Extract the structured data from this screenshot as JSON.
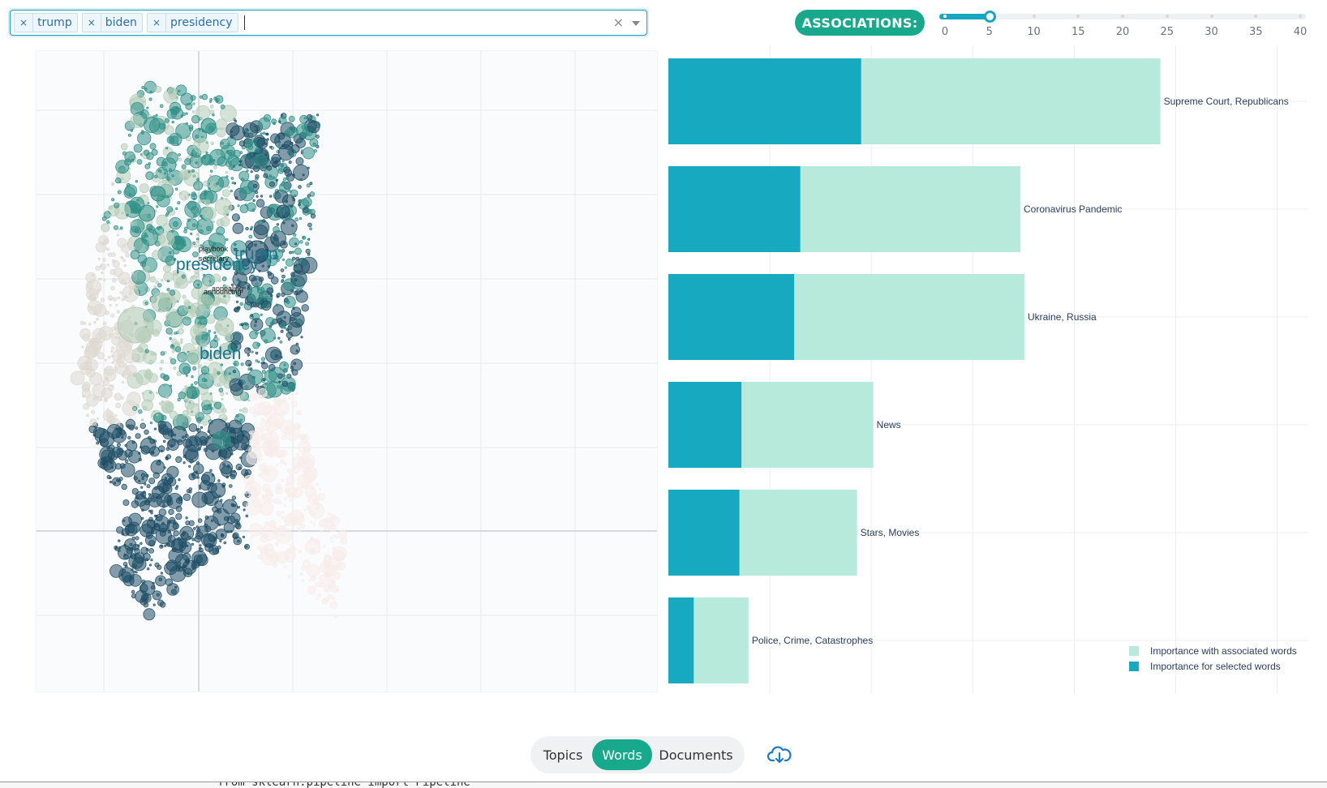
{
  "search": {
    "chips": [
      {
        "label": "trump"
      },
      {
        "label": "biden"
      },
      {
        "label": "presidency"
      }
    ],
    "chip_remove_glyph": "×",
    "clear_glyph": "×"
  },
  "associations": {
    "label": "ASSOCIATIONS:",
    "slider": {
      "min": 0,
      "max": 40,
      "value": 5,
      "ticks": [
        "0",
        "5",
        "10",
        "15",
        "20",
        "25",
        "30",
        "35",
        "40"
      ]
    }
  },
  "scatter": {
    "word_labels": [
      {
        "text": "presidency",
        "emphasis": "large"
      },
      {
        "text": "trump",
        "emphasis": "large"
      },
      {
        "text": "biden",
        "emphasis": "large"
      },
      {
        "text": "playbook",
        "emphasis": "small"
      },
      {
        "text": "secretary",
        "emphasis": "small"
      },
      {
        "text": "appealing",
        "emphasis": "small"
      },
      {
        "text": "announcing",
        "emphasis": "small"
      }
    ],
    "colors": {
      "dark": "#1f4e66",
      "teal": "#2f8f86",
      "sage": "#b6cdb8",
      "pale": "#ddd8cf",
      "pink": "#f7ecea"
    }
  },
  "chart_data": {
    "type": "bar",
    "orientation": "horizontal",
    "categories": [
      "Supreme Court, Republicans",
      "Coronavirus Pandemic",
      "Ukraine, Russia",
      "News",
      "Stars, Movies",
      "Police, Crime, Catastrophes"
    ],
    "series": [
      {
        "name": "Importance for selected words",
        "values": [
          19,
          13,
          12.4,
          7.2,
          7.0,
          2.5
        ]
      },
      {
        "name": "Importance with associated words",
        "values": [
          48.5,
          34.7,
          35.1,
          20.2,
          18.6,
          7.9
        ]
      }
    ],
    "xlim": [
      0,
      63
    ],
    "grid": true,
    "legend": "bottom-right",
    "colors": {
      "selected": "#16a9c0",
      "associated": "#b8eadb"
    }
  },
  "nav": {
    "tabs": [
      {
        "label": "Topics"
      },
      {
        "label": "Words",
        "active": true
      },
      {
        "label": "Documents"
      }
    ],
    "download_icon": "cloud-download-icon"
  },
  "background_code": "from sklearn.pipeline import Pipeline"
}
